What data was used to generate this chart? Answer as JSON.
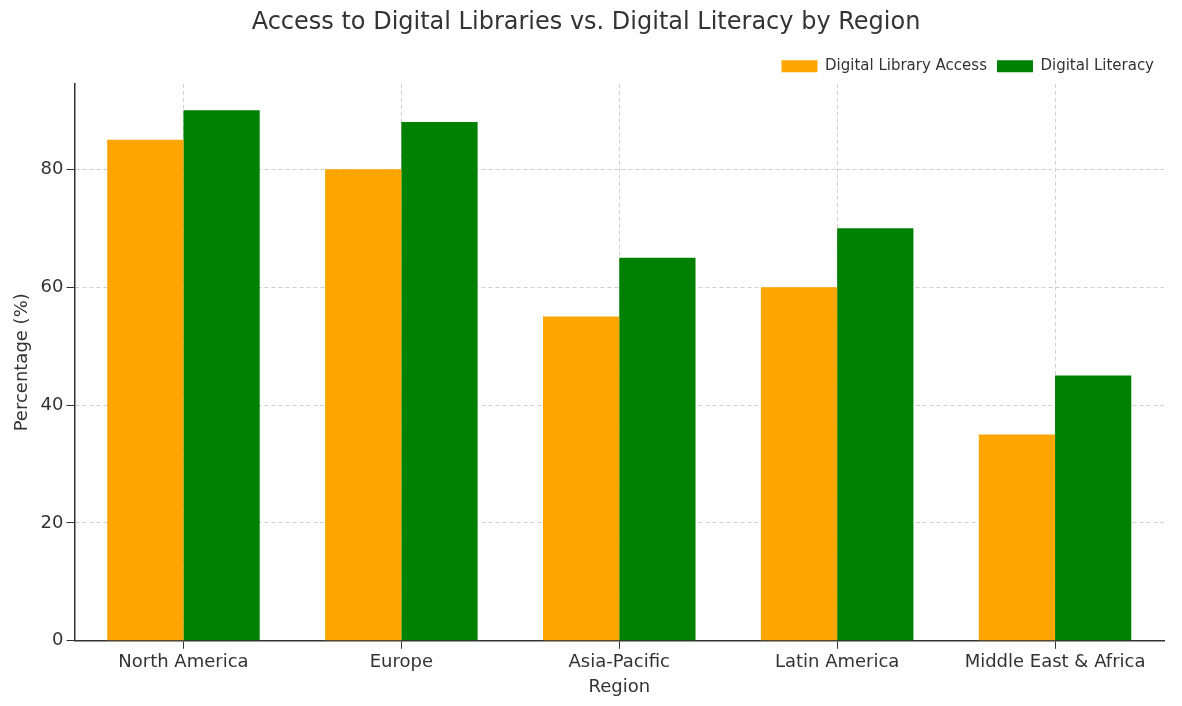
{
  "chart_data": {
    "type": "bar",
    "title": "Access to Digital Libraries vs. Digital Literacy by Region",
    "xlabel": "Region",
    "ylabel": "Percentage (%)",
    "categories": [
      "North America",
      "Europe",
      "Asia-Pacific",
      "Latin America",
      "Middle East & Africa"
    ],
    "series": [
      {
        "name": "Digital Library Access",
        "color": "#ffa500",
        "values": [
          85,
          80,
          55,
          60,
          35
        ]
      },
      {
        "name": "Digital Literacy",
        "color": "#008000",
        "values": [
          90,
          88,
          65,
          70,
          45
        ]
      }
    ],
    "ylim": [
      0,
      94.5
    ],
    "yticks": [
      0,
      20,
      40,
      60,
      80
    ],
    "grid": true,
    "legend": "top right"
  }
}
